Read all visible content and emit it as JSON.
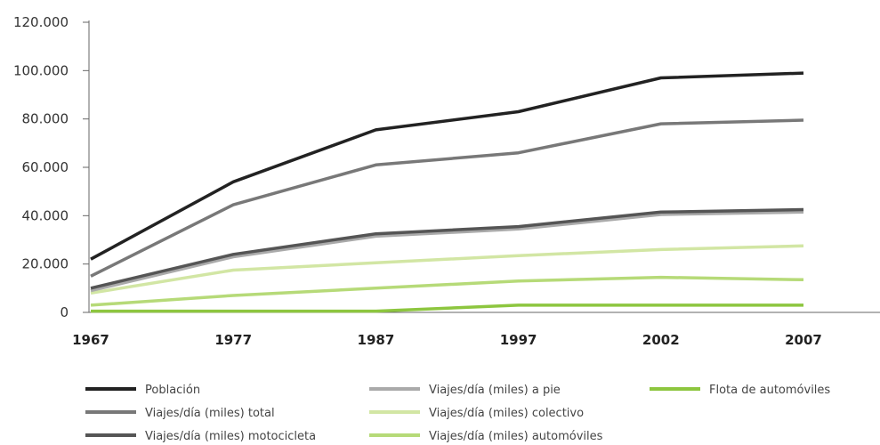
{
  "chart_data": {
    "type": "line",
    "title": "",
    "xlabel": "",
    "ylabel": "",
    "categories": [
      "1967",
      "1977",
      "1987",
      "1997",
      "2002",
      "2007"
    ],
    "ylim": [
      0,
      120000
    ],
    "yticks": [
      0,
      20000,
      40000,
      60000,
      80000,
      100000,
      120000
    ],
    "ytick_labels": [
      "0",
      "20.000",
      "40.000",
      "60.000",
      "80.000",
      "100.000",
      "120.000"
    ],
    "grid": false,
    "legend_position": "bottom",
    "series": [
      {
        "name": "Población",
        "color": "#222222",
        "values": [
          22000,
          54000,
          75500,
          83000,
          97000,
          99000
        ]
      },
      {
        "name": "Viajes/día (miles) total",
        "color": "#787878",
        "values": [
          15000,
          44500,
          61000,
          66000,
          78000,
          79500
        ]
      },
      {
        "name": "Viajes/día (miles) motocicleta",
        "color": "#555555",
        "values": [
          10000,
          24000,
          32500,
          35500,
          41500,
          42500
        ]
      },
      {
        "name": "Viajes/día (miles) a pie",
        "color": "#aaaaaa",
        "values": [
          9000,
          23000,
          31500,
          34500,
          40500,
          41500
        ]
      },
      {
        "name": "Viajes/día (miles) colectivo",
        "color": "#d2e6a4",
        "values": [
          8000,
          17500,
          20500,
          23500,
          26000,
          27500
        ]
      },
      {
        "name": "Viajes/día (miles) automóviles",
        "color": "#b6da78",
        "values": [
          3000,
          7000,
          10000,
          13000,
          14500,
          13500
        ]
      },
      {
        "name": "Flota de automóviles",
        "color": "#8dc63f",
        "values": [
          500,
          500,
          500,
          3000,
          3000,
          3000
        ]
      }
    ]
  }
}
